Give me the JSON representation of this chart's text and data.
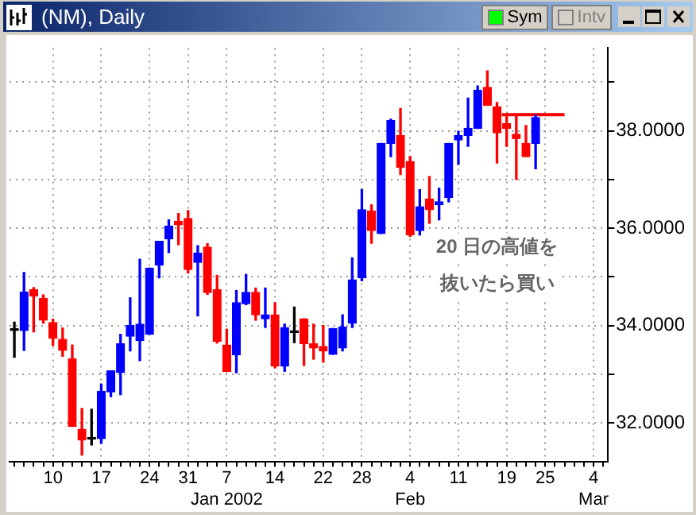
{
  "chart_data": {
    "type": "candlestick",
    "title": "(NM), Daily",
    "categories": [
      null,
      null,
      null,
      null,
      "10",
      null,
      null,
      null,
      null,
      "17",
      null,
      null,
      null,
      null,
      "24",
      null,
      null,
      null,
      "31",
      null,
      null,
      null,
      "7\nJan 2002",
      null,
      null,
      null,
      null,
      "14",
      null,
      null,
      null,
      null,
      "22",
      null,
      null,
      null,
      "28",
      null,
      null,
      null,
      null,
      "4\nFeb",
      null,
      null,
      null,
      null,
      "11",
      null,
      null,
      null,
      null,
      "19",
      null,
      null,
      null,
      "25",
      null,
      null,
      null,
      null,
      "4\nMar",
      null
    ],
    "ohlc": [
      [
        33.9,
        34.07,
        33.35,
        33.9
      ],
      [
        33.9,
        35.09,
        33.49,
        34.69
      ],
      [
        34.74,
        34.78,
        33.87,
        34.61
      ],
      [
        34.56,
        34.63,
        34.05,
        34.11
      ],
      [
        34.06,
        34.13,
        33.59,
        33.74
      ],
      [
        33.72,
        33.95,
        33.37,
        33.49
      ],
      [
        33.32,
        33.6,
        31.93,
        31.93
      ],
      [
        31.87,
        32.3,
        31.34,
        31.65
      ],
      [
        31.67,
        32.28,
        31.55,
        31.67
      ],
      [
        31.68,
        32.8,
        31.58,
        32.65
      ],
      [
        32.64,
        33.07,
        32.54,
        33.07
      ],
      [
        33.04,
        33.82,
        32.58,
        33.63
      ],
      [
        33.78,
        34.57,
        33.48,
        34.0
      ],
      [
        33.69,
        35.36,
        33.28,
        34.03
      ],
      [
        33.82,
        35.18,
        33.82,
        35.18
      ],
      [
        35.24,
        35.73,
        34.98,
        35.73
      ],
      [
        35.78,
        36.17,
        35.5,
        36.04
      ],
      [
        36.14,
        36.3,
        35.66,
        36.07
      ],
      [
        36.2,
        36.36,
        35.08,
        35.15
      ],
      [
        35.3,
        35.64,
        34.2,
        35.49
      ],
      [
        35.61,
        35.68,
        34.64,
        34.68
      ],
      [
        34.74,
        35.03,
        33.64,
        33.68
      ],
      [
        33.6,
        33.92,
        33.06,
        33.06
      ],
      [
        33.4,
        34.72,
        33.03,
        34.47
      ],
      [
        34.45,
        35.05,
        34.43,
        34.68
      ],
      [
        34.68,
        34.77,
        34.11,
        34.22
      ],
      [
        34.14,
        34.77,
        33.96,
        34.22
      ],
      [
        34.22,
        34.47,
        33.13,
        33.17
      ],
      [
        33.17,
        34.03,
        33.06,
        33.96
      ],
      [
        33.86,
        34.38,
        33.65,
        33.86
      ],
      [
        34.14,
        34.14,
        33.18,
        33.63
      ],
      [
        33.63,
        34.03,
        33.31,
        33.54
      ],
      [
        33.57,
        34.0,
        33.25,
        33.48
      ],
      [
        33.41,
        33.94,
        33.41,
        33.94
      ],
      [
        33.54,
        34.22,
        33.48,
        33.97
      ],
      [
        34.05,
        35.39,
        33.96,
        34.94
      ],
      [
        34.98,
        36.79,
        34.92,
        36.38
      ],
      [
        36.35,
        36.48,
        35.69,
        35.95
      ],
      [
        35.89,
        37.74,
        35.89,
        37.74
      ],
      [
        37.74,
        38.24,
        37.47,
        38.21
      ],
      [
        37.9,
        38.46,
        37.1,
        37.25
      ],
      [
        37.37,
        37.47,
        35.83,
        35.86
      ],
      [
        35.95,
        36.79,
        35.86,
        36.44
      ],
      [
        36.6,
        37.06,
        36.1,
        36.38
      ],
      [
        36.48,
        36.82,
        36.17,
        36.54
      ],
      [
        36.63,
        37.74,
        36.54,
        37.74
      ],
      [
        37.81,
        37.99,
        37.31,
        37.9
      ],
      [
        37.9,
        38.67,
        37.68,
        38.05
      ],
      [
        38.05,
        38.92,
        38.05,
        38.83
      ],
      [
        38.89,
        39.23,
        38.52,
        38.52
      ],
      [
        38.49,
        38.58,
        37.34,
        37.96
      ],
      [
        38.15,
        38.3,
        37.68,
        38.05
      ],
      [
        37.93,
        38.3,
        37.0,
        37.84
      ],
      [
        37.74,
        38.11,
        37.47,
        37.47
      ],
      [
        37.74,
        38.33,
        37.22,
        38.27
      ],
      null,
      null,
      null,
      null,
      null,
      null,
      null
    ],
    "colors": [
      "#000000",
      "#0000ff",
      "#ff0000",
      "#ff0000",
      "#ff0000",
      "#ff0000",
      "#ff0000",
      "#ff0000",
      "#000000",
      "#0000ff",
      "#0000ff",
      "#0000ff",
      "#0000ff",
      "#0000ff",
      "#0000ff",
      "#0000ff",
      "#0000ff",
      "#ff0000",
      "#ff0000",
      "#0000ff",
      "#ff0000",
      "#ff0000",
      "#ff0000",
      "#0000ff",
      "#0000ff",
      "#ff0000",
      "#0000ff",
      "#ff0000",
      "#0000ff",
      "#000000",
      "#ff0000",
      "#ff0000",
      "#ff0000",
      "#0000ff",
      "#0000ff",
      "#0000ff",
      "#0000ff",
      "#ff0000",
      "#0000ff",
      "#0000ff",
      "#ff0000",
      "#ff0000",
      "#0000ff",
      "#ff0000",
      "#0000ff",
      "#0000ff",
      "#0000ff",
      "#0000ff",
      "#0000ff",
      "#ff0000",
      "#ff0000",
      "#ff0000",
      "#ff0000",
      "#ff0000",
      "#0000ff",
      null,
      null,
      null,
      null,
      null,
      null,
      null
    ],
    "ylim": [
      31.2,
      39.7
    ],
    "yticks": [
      {
        "value": 32,
        "label": "32.0000"
      },
      {
        "value": 33,
        "label": null
      },
      {
        "value": 34,
        "label": "34.0000"
      },
      {
        "value": 35,
        "label": null
      },
      {
        "value": 36,
        "label": "36.0000"
      },
      {
        "value": 37,
        "label": null
      },
      {
        "value": 38,
        "label": "38.0000"
      },
      {
        "value": 39,
        "label": null
      }
    ],
    "grid": true,
    "ref_lines": [
      {
        "axis": "y",
        "value": 38.33,
        "color": "#ff0000"
      }
    ],
    "annotations": [
      "20 日の高値を",
      "抜いたら買い",
      "Sym",
      "Intv"
    ]
  }
}
